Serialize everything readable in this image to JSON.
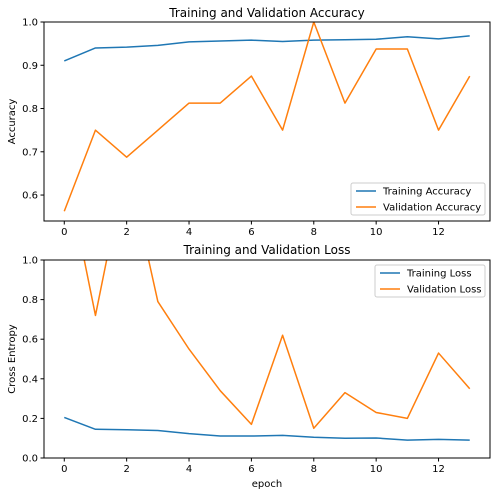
{
  "chart_data": [
    {
      "type": "line",
      "title": "Training and Validation Accuracy",
      "xlabel": "",
      "ylabel": "Accuracy",
      "xlim": [
        -0.65,
        13.65
      ],
      "ylim": [
        0.54,
        1.0
      ],
      "xticks": [
        0,
        2,
        4,
        6,
        8,
        10,
        12
      ],
      "yticks": [
        0.6,
        0.7,
        0.8,
        0.9,
        1.0
      ],
      "yticks_fmt": 1,
      "grid": false,
      "legend": "lower-right",
      "x": [
        0,
        1,
        2,
        3,
        4,
        5,
        6,
        7,
        8,
        9,
        10,
        11,
        12,
        13
      ],
      "series": [
        {
          "name": "Training Accuracy",
          "color": "#1f77b4",
          "values": [
            0.91,
            0.94,
            0.942,
            0.946,
            0.954,
            0.956,
            0.958,
            0.955,
            0.958,
            0.959,
            0.96,
            0.966,
            0.961,
            0.968
          ]
        },
        {
          "name": "Validation Accuracy",
          "color": "#ff7f0e",
          "values": [
            0.5625,
            0.75,
            0.6875,
            0.75,
            0.8125,
            0.8125,
            0.875,
            0.75,
            1.0,
            0.8125,
            0.9375,
            0.9375,
            0.75,
            0.875
          ]
        }
      ]
    },
    {
      "type": "line",
      "title": "Training and Validation Loss",
      "xlabel": "epoch",
      "ylabel": "Cross Entropy",
      "xlim": [
        -0.65,
        13.65
      ],
      "ylim": [
        0.0,
        1.0
      ],
      "xticks": [
        0,
        2,
        4,
        6,
        8,
        10,
        12
      ],
      "yticks": [
        0.0,
        0.2,
        0.4,
        0.6,
        0.8,
        1.0
      ],
      "yticks_fmt": 1,
      "grid": false,
      "legend": "upper-right",
      "x": [
        0,
        1,
        2,
        3,
        4,
        5,
        6,
        7,
        8,
        9,
        10,
        11,
        12,
        13
      ],
      "series": [
        {
          "name": "Training Loss",
          "color": "#1f77b4",
          "values": [
            0.205,
            0.145,
            0.143,
            0.139,
            0.123,
            0.111,
            0.111,
            0.114,
            0.105,
            0.1,
            0.101,
            0.09,
            0.094,
            0.09
          ]
        },
        {
          "name": "Validation Loss",
          "color": "#ff7f0e",
          "values": [
            1.5,
            0.72,
            1.5,
            0.79,
            0.55,
            0.34,
            0.17,
            0.62,
            0.15,
            0.33,
            0.23,
            0.2,
            0.53,
            0.35
          ]
        }
      ]
    }
  ]
}
